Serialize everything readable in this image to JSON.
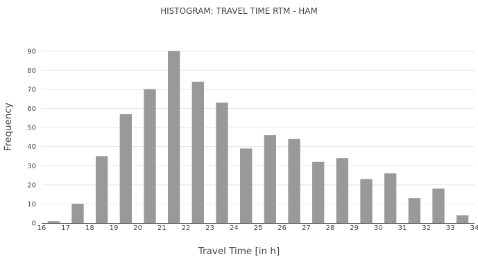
{
  "chart_data": {
    "type": "bar",
    "title": "HISTOGRAM: TRAVEL TIME RTM - HAM",
    "xlabel": "Travel Time [in h]",
    "ylabel": "Frequency",
    "bin_start": [
      16.0,
      17.0,
      18.0,
      19.0,
      20.0,
      21.0,
      22.0,
      23.0,
      24.0,
      25.0,
      26.0,
      27.0,
      28.0,
      29.0,
      30.0,
      31.0,
      32.0,
      33.0
    ],
    "bin_width": 1.0,
    "values": [
      1,
      10,
      35,
      57,
      70,
      90,
      74,
      63,
      39,
      46,
      44,
      32,
      34,
      23,
      26,
      13,
      18,
      4
    ],
    "xlim": [
      16,
      34
    ],
    "ylim": [
      0,
      95
    ],
    "xticks": [
      16,
      17,
      18,
      19,
      20,
      21,
      22,
      23,
      24,
      25,
      26,
      27,
      28,
      29,
      30,
      31,
      32,
      33,
      34
    ],
    "yticks": [
      0,
      10,
      20,
      30,
      40,
      50,
      60,
      70,
      80,
      90
    ],
    "bar_color": "#999999",
    "grid": true
  }
}
